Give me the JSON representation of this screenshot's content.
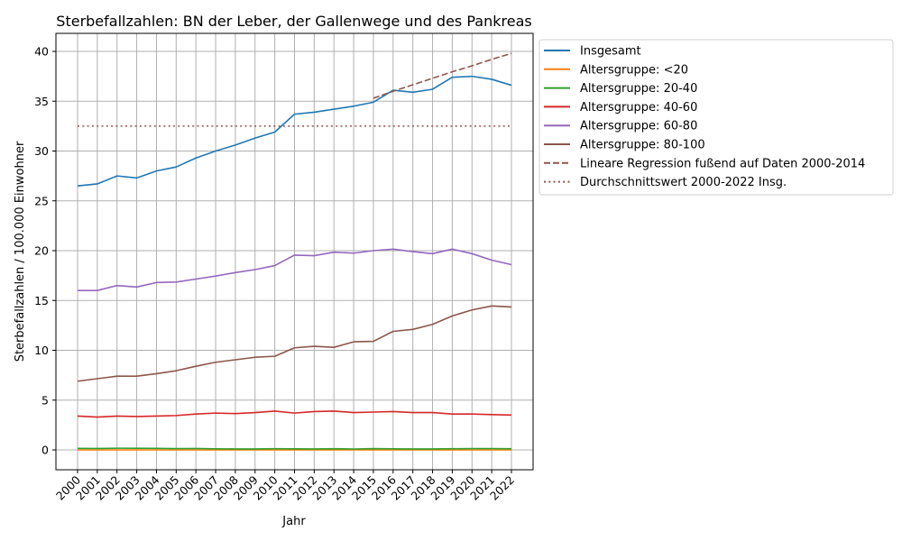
{
  "chart_data": {
    "type": "line",
    "title": "Sterbefallzahlen: BN der Leber, der Gallenwege und des Pankreas",
    "xlabel": "Jahr",
    "ylabel": "Sterbefallzahlen / 100.000 Einwohner",
    "ylim": [
      -2,
      41.8
    ],
    "xlim": [
      1998.9,
      2023.1
    ],
    "grid": true,
    "legend_position": "outside upper right",
    "x": [
      2000,
      2001,
      2002,
      2003,
      2004,
      2005,
      2006,
      2007,
      2008,
      2009,
      2010,
      2011,
      2012,
      2013,
      2014,
      2015,
      2016,
      2017,
      2018,
      2019,
      2020,
      2021,
      2022
    ],
    "x_tick_labels": [
      "2000",
      "2001",
      "2002",
      "2003",
      "2004",
      "2005",
      "2006",
      "2007",
      "2008",
      "2009",
      "2010",
      "2011",
      "2012",
      "2013",
      "2014",
      "2015",
      "2016",
      "2017",
      "2018",
      "2019",
      "2020",
      "2021",
      "2022"
    ],
    "y_ticks": [
      0,
      5,
      10,
      15,
      20,
      25,
      30,
      35,
      40
    ],
    "y_tick_labels": [
      "0",
      "5",
      "10",
      "15",
      "20",
      "25",
      "30",
      "35",
      "40"
    ],
    "series": [
      {
        "name": "Insgesamt",
        "color": "#1f77b4",
        "style": "solid",
        "values": [
          26.5,
          26.7,
          27.5,
          27.3,
          28.0,
          28.4,
          29.3,
          30.0,
          30.6,
          31.3,
          31.9,
          33.7,
          33.9,
          34.2,
          34.5,
          34.9,
          36.1,
          35.9,
          36.2,
          37.4,
          37.5,
          37.2,
          36.6
        ]
      },
      {
        "name": "Altersgruppe: <20",
        "color": "#ff7f0e",
        "style": "solid",
        "values": [
          0.0,
          0.0,
          0.0,
          0.0,
          0.0,
          0.0,
          0.0,
          0.0,
          0.0,
          0.0,
          0.0,
          0.0,
          0.0,
          0.0,
          0.0,
          0.0,
          0.0,
          0.0,
          0.0,
          0.0,
          0.0,
          0.0,
          0.0
        ]
      },
      {
        "name": "Altersgruppe: 20-40",
        "color": "#2ca02c",
        "style": "solid",
        "values": [
          0.15,
          0.14,
          0.17,
          0.16,
          0.15,
          0.13,
          0.14,
          0.11,
          0.1,
          0.1,
          0.12,
          0.11,
          0.1,
          0.12,
          0.09,
          0.13,
          0.11,
          0.1,
          0.1,
          0.12,
          0.13,
          0.13,
          0.12
        ]
      },
      {
        "name": "Altersgruppe: 40-60",
        "color": "#d62728",
        "style": "solid",
        "values": [
          3.4,
          3.3,
          3.4,
          3.35,
          3.4,
          3.45,
          3.6,
          3.7,
          3.65,
          3.75,
          3.9,
          3.7,
          3.85,
          3.9,
          3.75,
          3.8,
          3.85,
          3.75,
          3.75,
          3.6,
          3.6,
          3.55,
          3.5
        ]
      },
      {
        "name": "Altersgruppe: 60-80",
        "color": "#9467bd",
        "style": "solid",
        "values": [
          16.0,
          16.0,
          16.5,
          16.35,
          16.8,
          16.85,
          17.15,
          17.45,
          17.8,
          18.1,
          18.5,
          19.55,
          19.5,
          19.85,
          19.75,
          20.0,
          20.15,
          19.9,
          19.7,
          20.15,
          19.7,
          19.05,
          18.6
        ]
      },
      {
        "name": "Altersgruppe: 80-100",
        "color": "#8c564b",
        "style": "solid",
        "values": [
          6.9,
          7.15,
          7.4,
          7.4,
          7.65,
          7.95,
          8.4,
          8.8,
          9.05,
          9.3,
          9.4,
          10.25,
          10.4,
          10.3,
          10.85,
          10.9,
          11.9,
          12.1,
          12.6,
          13.45,
          14.05,
          14.45,
          14.35
        ]
      },
      {
        "name": "Lineare Regression fußend auf Daten 2000-2014",
        "color": "#8c564b",
        "style": "dashed",
        "x": [
          2015,
          2016,
          2017,
          2018,
          2019,
          2020,
          2021,
          2022
        ],
        "values": [
          35.3,
          36.0,
          36.65,
          37.3,
          37.95,
          38.55,
          39.2,
          39.8
        ]
      },
      {
        "name": "Durchschnittswert 2000-2022 Insg.",
        "color": "#8c564b",
        "style": "dotted",
        "x": [
          2000,
          2022
        ],
        "values": [
          32.5,
          32.5
        ]
      }
    ]
  }
}
